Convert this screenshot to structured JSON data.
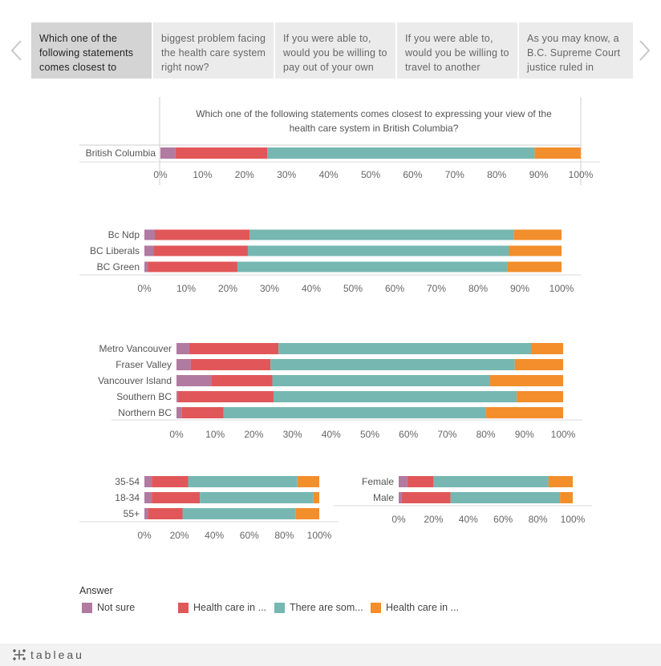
{
  "tabs": [
    {
      "label": "Which one of the following statements comes closest to",
      "active": true
    },
    {
      "label": " biggest problem facing the health care system right now?",
      "active": false
    },
    {
      "label": "If you were able to, would you be willing to pay out of your own",
      "active": false
    },
    {
      "label": "If you were able to, would you be willing to travel to another",
      "active": false
    },
    {
      "label": "As you may know, a B.C. Supreme Court justice ruled in",
      "active": false
    }
  ],
  "icons": {
    "prev": "chevron-left-icon",
    "next": "chevron-right-icon",
    "logo": "tableau-logo-icon"
  },
  "colors": {
    "Not sure": "#b07aa1",
    "Health care in ...red": "#e15759",
    "There are som...": "#76b7b2",
    "Health care in ...orange": "#f28e2b"
  },
  "chart_data": [
    {
      "type": "bar",
      "orientation": "horizontal-stacked-100",
      "title": "Which one of the following statements comes closest to expressing your view of the health care system in British Columbia?",
      "categories": [
        "British Columbia"
      ],
      "series": [
        {
          "name": "Not sure",
          "values": [
            3.6
          ]
        },
        {
          "name": "Health care in ...",
          "values": [
            21.8
          ]
        },
        {
          "name": "There are som...",
          "values": [
            63.6
          ]
        },
        {
          "name": "Health care in ...",
          "values": [
            11.0
          ]
        }
      ],
      "xticks": [
        "0%",
        "10%",
        "20%",
        "30%",
        "40%",
        "50%",
        "60%",
        "70%",
        "80%",
        "90%",
        "100%"
      ],
      "xlim": [
        0,
        100
      ]
    },
    {
      "type": "bar",
      "orientation": "horizontal-stacked-100",
      "categories": [
        "Bc Ndp",
        "BC Liberals",
        "BC Green"
      ],
      "series": [
        {
          "name": "Not sure",
          "values": [
            2.5,
            2.2,
            0.8
          ]
        },
        {
          "name": "Health care in ...",
          "values": [
            22.7,
            22.6,
            21.5
          ]
        },
        {
          "name": "There are som...",
          "values": [
            63.4,
            62.6,
            64.8
          ]
        },
        {
          "name": "Health care in ...",
          "values": [
            11.4,
            12.6,
            12.9
          ]
        }
      ],
      "xticks": [
        "0%",
        "10%",
        "20%",
        "30%",
        "40%",
        "50%",
        "60%",
        "70%",
        "80%",
        "90%",
        "100%"
      ],
      "xlim": [
        0,
        100
      ]
    },
    {
      "type": "bar",
      "orientation": "horizontal-stacked-100",
      "categories": [
        "Metro Vancouver",
        "Fraser Valley",
        "Vancouver Island",
        "Southern BC",
        "Northern BC"
      ],
      "series": [
        {
          "name": "Not sure",
          "values": [
            3.3,
            3.7,
            9.0,
            0.4,
            1.3
          ]
        },
        {
          "name": "Health care in ...",
          "values": [
            23.1,
            20.6,
            15.8,
            24.7,
            10.9
          ]
        },
        {
          "name": "There are som...",
          "values": [
            65.3,
            63.2,
            56.2,
            62.9,
            67.8
          ]
        },
        {
          "name": "Health care in ...",
          "values": [
            8.3,
            12.5,
            19.0,
            12.0,
            20.0
          ]
        }
      ],
      "xticks": [
        "0%",
        "10%",
        "20%",
        "30%",
        "40%",
        "50%",
        "60%",
        "70%",
        "80%",
        "90%",
        "100%"
      ],
      "xlim": [
        0,
        100
      ]
    },
    {
      "type": "bar",
      "orientation": "horizontal-stacked-100",
      "categories": [
        "35-54",
        "18-34",
        "55+"
      ],
      "series": [
        {
          "name": "Not sure",
          "values": [
            4.2,
            4.2,
            2.1
          ]
        },
        {
          "name": "Health care in ...",
          "values": [
            20.8,
            27.5,
            19.7
          ]
        },
        {
          "name": "There are som...",
          "values": [
            62.5,
            65.0,
            64.8
          ]
        },
        {
          "name": "Health care in ...",
          "values": [
            12.5,
            3.3,
            13.4
          ]
        }
      ],
      "xticks": [
        "0%",
        "20%",
        "40%",
        "60%",
        "80%",
        "100%"
      ],
      "xlim": [
        0,
        100
      ]
    },
    {
      "type": "bar",
      "orientation": "horizontal-stacked-100",
      "categories": [
        "Female",
        "Male"
      ],
      "series": [
        {
          "name": "Not sure",
          "values": [
            5.0,
            1.8
          ]
        },
        {
          "name": "Health care in ...",
          "values": [
            15.0,
            28.0
          ]
        },
        {
          "name": "There are som...",
          "values": [
            66.0,
            62.9
          ]
        },
        {
          "name": "Health care in ...",
          "values": [
            14.0,
            7.3
          ]
        }
      ],
      "xticks": [
        "0%",
        "20%",
        "40%",
        "60%",
        "80%",
        "100%"
      ],
      "xlim": [
        0,
        100
      ]
    }
  ],
  "legend": {
    "title": "Answer",
    "items": [
      {
        "label": "Not sure",
        "color": "#b07aa1"
      },
      {
        "label": "Health care in ...",
        "color": "#e15759"
      },
      {
        "label": "There are som...",
        "color": "#76b7b2"
      },
      {
        "label": "Health care in ...",
        "color": "#f28e2b"
      }
    ]
  },
  "footer": {
    "logo_text": "tableau"
  }
}
